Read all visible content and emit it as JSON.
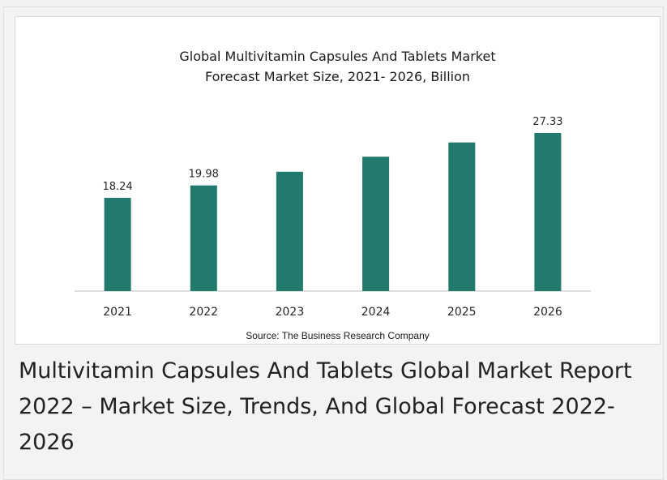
{
  "colors": {
    "bar": "#217a6b",
    "axis": "#bfbfbf",
    "text": "#262626"
  },
  "chart_data": {
    "type": "bar",
    "title": [
      "Global Multivitamin Capsules And Tablets Market",
      "Forecast Market Size, 2021- 2026, Billion"
    ],
    "categories": [
      "2021",
      "2022",
      "2023",
      "2024",
      "2025",
      "2026"
    ],
    "values": [
      18.24,
      19.98,
      21.9,
      24.0,
      26.0,
      27.33
    ],
    "value_labels": [
      "18.24",
      "19.98",
      "",
      "",
      "",
      "27.33"
    ],
    "ylim": [
      0,
      30
    ],
    "xlabel": "",
    "ylabel": "",
    "grid": false,
    "source": "Source: The Business Research Company"
  },
  "caption": "Multivitamin Capsules And Tablets Global Market Report 2022 – Market Size, Trends, And Global Forecast 2022-2026"
}
